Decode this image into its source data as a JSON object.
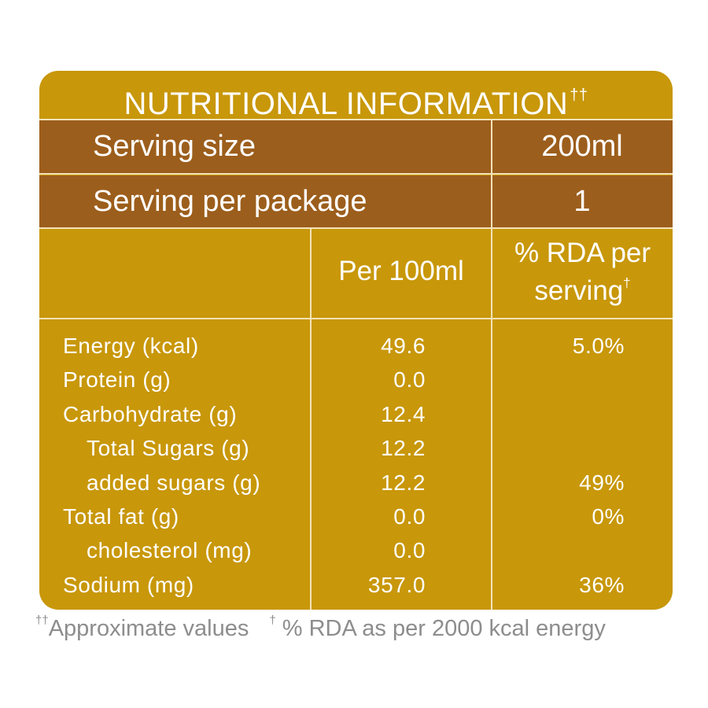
{
  "title": {
    "text": "NUTRITIONAL INFORMATION",
    "mark": "††"
  },
  "serving": {
    "size_label": "Serving size",
    "size_value": "200ml",
    "package_label": "Serving per package",
    "package_value": "1"
  },
  "columns": {
    "per100": "Per 100ml",
    "rda_line1": "% RDA per",
    "rda_line2": "serving",
    "rda_mark": "†"
  },
  "nutrients": [
    {
      "name": "Energy (kcal)",
      "per100": "49.6",
      "rda": "5.0%"
    },
    {
      "name": "Protein (g)",
      "per100": "0.0",
      "rda": ""
    },
    {
      "name": "Carbohydrate (g)",
      "per100": "12.4",
      "rda": ""
    },
    {
      "name": "Total Sugars (g)",
      "per100": "12.2",
      "rda": ""
    },
    {
      "name": "added sugars (g)",
      "per100": "12.2",
      "rda": "49%"
    },
    {
      "name": "Total fat (g)",
      "per100": "0.0",
      "rda": "0%"
    },
    {
      "name": "cholesterol (mg)",
      "per100": "0.0",
      "rda": ""
    },
    {
      "name": "Sodium (mg)",
      "per100": "357.0",
      "rda": "36%"
    }
  ],
  "footnote": {
    "mark1": "††",
    "text1": "Approximate values",
    "mark2": "†",
    "text2": " % RDA as per 2000 kcal energy"
  },
  "colors": {
    "gold": "#c8970a",
    "brown": "#9c5e1c",
    "divider": "#f3e3b8",
    "footnote": "#8d8d8d"
  }
}
